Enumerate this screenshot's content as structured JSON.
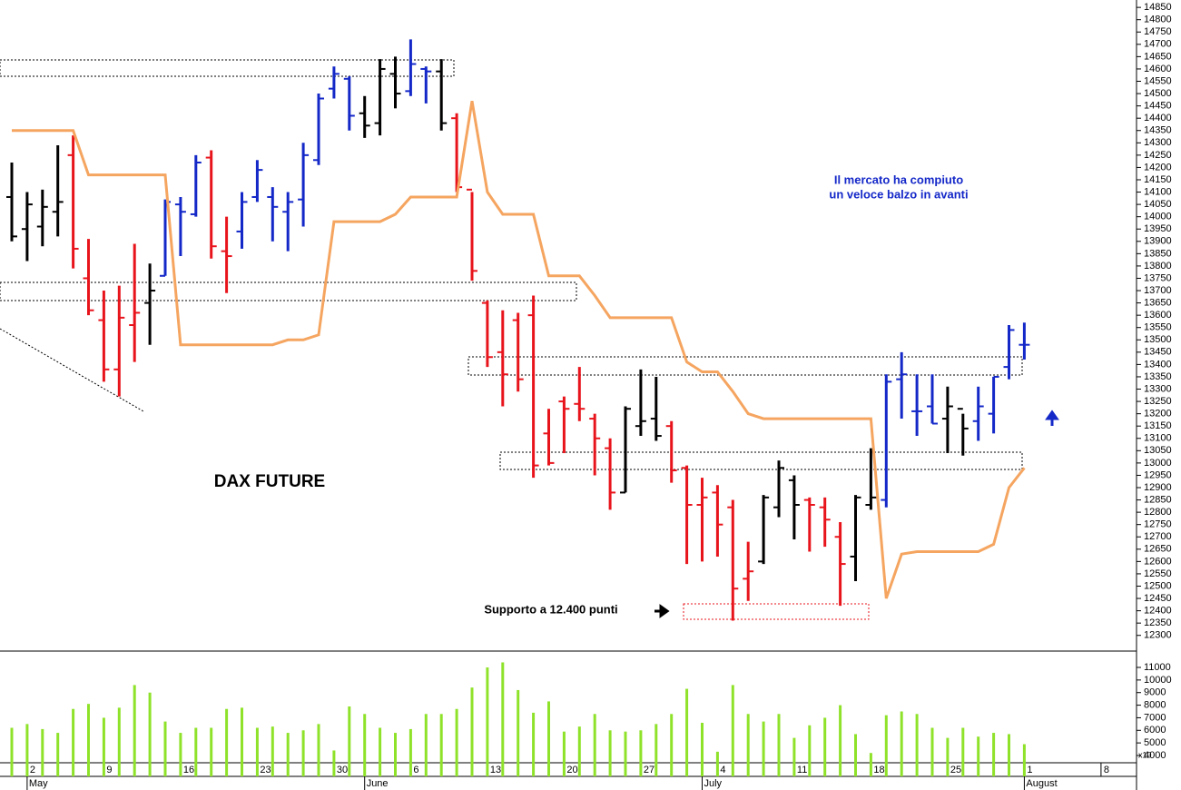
{
  "chart_data": [
    {
      "type": "ohlc",
      "title": "DAX FUTURE",
      "annotations": [
        "Il mercato ha compiuto",
        "un veloce balzo in avanti",
        "Supporto a 12.400 punti"
      ],
      "x": [
        null,
        "2",
        null,
        null,
        null,
        null,
        "9",
        null,
        null,
        null,
        null,
        "16",
        null,
        null,
        null,
        null,
        "23",
        null,
        null,
        null,
        null,
        "30",
        null,
        null,
        null,
        null,
        "6",
        null,
        null,
        null,
        null,
        "13",
        null,
        null,
        null,
        null,
        "20",
        null,
        null,
        null,
        null,
        "27",
        null,
        null,
        null,
        null,
        "4",
        null,
        null,
        null,
        null,
        "11",
        null,
        null,
        null,
        null,
        "18",
        null,
        null,
        null,
        null,
        "25",
        null,
        null,
        null,
        null,
        "1",
        null,
        null,
        null,
        null,
        "8"
      ],
      "months": [
        null,
        "May",
        null,
        null,
        null,
        null,
        null,
        null,
        null,
        null,
        null,
        null,
        null,
        null,
        null,
        null,
        null,
        null,
        null,
        null,
        null,
        null,
        null,
        "June",
        null,
        null,
        null,
        null,
        null,
        null,
        null,
        null,
        null,
        null,
        null,
        null,
        null,
        null,
        null,
        null,
        null,
        null,
        null,
        null,
        null,
        "July",
        null,
        null,
        null,
        null,
        null,
        null,
        null,
        null,
        null,
        null,
        null,
        null,
        null,
        null,
        null,
        null,
        null,
        null,
        null,
        null,
        "August",
        null,
        null,
        null,
        null,
        null
      ],
      "open": [
        14080,
        13950,
        13960,
        14020,
        14250,
        13750,
        13580,
        13380,
        13560,
        13650,
        13760,
        14050,
        14010,
        14240,
        13860,
        13940,
        14080,
        14080,
        14020,
        14070,
        14230,
        14520,
        14560,
        14420,
        14380,
        14580,
        14510,
        14600,
        14590,
        14400,
        14110,
        13650,
        13450,
        13580,
        13600,
        13120,
        13250,
        13240,
        13180,
        13060,
        12880,
        13150,
        13180,
        13150,
        12980,
        12830,
        12880,
        12820,
        12530,
        12600,
        12820,
        12930,
        12850,
        12820,
        12700,
        12620,
        12830,
        12850,
        13340,
        13210,
        13230,
        13180,
        13220,
        13170,
        13200,
        13390,
        13480,
        null,
        null,
        null,
        null,
        null
      ],
      "high": [
        14220,
        14100,
        14110,
        14290,
        14330,
        13910,
        13700,
        13720,
        13890,
        13810,
        14070,
        14080,
        14250,
        14270,
        14000,
        14100,
        14230,
        14120,
        14100,
        14300,
        14500,
        14610,
        14570,
        14490,
        14640,
        14650,
        14720,
        14610,
        14640,
        14420,
        14100,
        13660,
        13620,
        13610,
        13680,
        13220,
        13270,
        13390,
        13200,
        13100,
        13230,
        13380,
        13350,
        13170,
        12990,
        12940,
        12910,
        12850,
        12680,
        12870,
        13010,
        12950,
        12860,
        12860,
        12760,
        12870,
        13060,
        13360,
        13450,
        13360,
        13360,
        13310,
        13200,
        13310,
        13350,
        13560,
        13570,
        null,
        null,
        null,
        null,
        null
      ],
      "low": [
        13900,
        13820,
        13880,
        13920,
        13790,
        13600,
        13330,
        13270,
        13410,
        13480,
        13760,
        13840,
        14000,
        13830,
        13690,
        13870,
        14060,
        13900,
        13860,
        13960,
        14210,
        14480,
        14350,
        14320,
        14330,
        14440,
        14490,
        14460,
        14350,
        14100,
        13740,
        13390,
        13230,
        13290,
        12940,
        12990,
        13040,
        13170,
        12950,
        12810,
        12880,
        13110,
        13090,
        12920,
        12590,
        12600,
        12620,
        12360,
        12440,
        12590,
        12780,
        12690,
        12640,
        12660,
        12420,
        12520,
        12810,
        12820,
        13180,
        13110,
        13160,
        13040,
        13030,
        13090,
        13120,
        13340,
        13420,
        null,
        null,
        null,
        null,
        null
      ],
      "close": [
        13920,
        14050,
        14040,
        14060,
        13870,
        13620,
        13380,
        13590,
        13610,
        13700,
        14060,
        14020,
        14220,
        13880,
        13840,
        14060,
        14190,
        14040,
        14060,
        14250,
        14480,
        14580,
        14410,
        14370,
        14600,
        14500,
        14620,
        14590,
        14380,
        14120,
        13780,
        13430,
        13360,
        13340,
        12990,
        13000,
        13220,
        13220,
        13100,
        12880,
        13220,
        13170,
        13110,
        12970,
        12830,
        12860,
        12750,
        12490,
        12560,
        12860,
        12980,
        12830,
        12830,
        12770,
        12590,
        12860,
        12860,
        13330,
        13360,
        13210,
        13160,
        13230,
        13140,
        13230,
        13350,
        13540,
        13480,
        null,
        null,
        null,
        null,
        null
      ],
      "bar_colors": [
        "#000000",
        "#000000",
        "#000000",
        "#000000",
        "#e8141c",
        "#e8141c",
        "#e8141c",
        "#e8141c",
        "#e8141c",
        "#000000",
        "#1428c8",
        "#1428c8",
        "#1428c8",
        "#e8141c",
        "#e8141c",
        "#1428c8",
        "#1428c8",
        "#1428c8",
        "#1428c8",
        "#1428c8",
        "#1428c8",
        "#1428c8",
        "#1428c8",
        "#000000",
        "#000000",
        "#000000",
        "#1428c8",
        "#1428c8",
        "#000000",
        "#e8141c",
        "#e8141c",
        "#e8141c",
        "#e8141c",
        "#e8141c",
        "#e8141c",
        "#e8141c",
        "#e8141c",
        "#e8141c",
        "#e8141c",
        "#e8141c",
        "#000000",
        "#000000",
        "#000000",
        "#e8141c",
        "#e8141c",
        "#e8141c",
        "#e8141c",
        "#e8141c",
        "#e8141c",
        "#000000",
        "#000000",
        "#000000",
        "#e8141c",
        "#e8141c",
        "#e8141c",
        "#000000",
        "#000000",
        "#1428c8",
        "#1428c8",
        "#1428c8",
        "#1428c8",
        "#000000",
        "#000000",
        "#1428c8",
        "#1428c8",
        "#1428c8",
        "#1428c8",
        null,
        null,
        null,
        null,
        null
      ],
      "overlay": {
        "color": "#f5a560",
        "values": [
          14350,
          14350,
          14350,
          14350,
          14350,
          14170,
          14170,
          14170,
          14170,
          14170,
          14170,
          13480,
          13480,
          13480,
          13480,
          13480,
          13480,
          13480,
          13500,
          13500,
          13520,
          13980,
          13980,
          13980,
          13980,
          14010,
          14080,
          14080,
          14080,
          14080,
          14470,
          14100,
          14010,
          14010,
          14010,
          13760,
          13760,
          13760,
          13680,
          13590,
          13590,
          13590,
          13590,
          13590,
          13410,
          13370,
          13370,
          13290,
          13200,
          13180,
          13180,
          13180,
          13180,
          13180,
          13180,
          13180,
          13180,
          12450,
          12630,
          12640,
          12640,
          12640,
          12640,
          12640,
          12670,
          12900,
          12980,
          null,
          null,
          null,
          null,
          null
        ]
      },
      "ylim": [
        12240,
        14880
      ],
      "yticks": [
        12300,
        12350,
        12400,
        12450,
        12500,
        12550,
        12600,
        12650,
        12700,
        12750,
        12800,
        12850,
        12900,
        12950,
        13000,
        13050,
        13100,
        13150,
        13200,
        13250,
        13300,
        13350,
        13400,
        13450,
        13500,
        13550,
        13600,
        13650,
        13700,
        13750,
        13800,
        13850,
        13900,
        13950,
        14000,
        14050,
        14100,
        14150,
        14200,
        14250,
        14300,
        14350,
        14400,
        14450,
        14500,
        14550,
        14600,
        14650,
        14700,
        14750,
        14800,
        14850
      ]
    },
    {
      "type": "bar",
      "axis_note": "x10",
      "color": "#8fe22a",
      "values": [
        6200,
        6500,
        6100,
        5800,
        7700,
        8100,
        7000,
        7800,
        9600,
        9000,
        6700,
        5800,
        6200,
        6200,
        7700,
        7800,
        6200,
        6300,
        5800,
        6000,
        6500,
        4400,
        7900,
        7300,
        6200,
        5800,
        6100,
        7300,
        7300,
        7700,
        9400,
        11000,
        11400,
        9200,
        7400,
        8300,
        5900,
        6300,
        7300,
        6000,
        5900,
        6000,
        6500,
        7300,
        9300,
        6600,
        4300,
        9600,
        7300,
        6700,
        7300,
        5400,
        6400,
        7000,
        8000,
        5700,
        4200,
        7200,
        7500,
        7300,
        6200,
        5400,
        6200,
        5500,
        5800,
        5700,
        4900,
        null,
        null,
        null,
        null,
        null
      ],
      "ylim": [
        2340,
        12300
      ],
      "yticks": [
        4000,
        5000,
        6000,
        7000,
        8000,
        9000,
        10000,
        11000
      ]
    }
  ]
}
